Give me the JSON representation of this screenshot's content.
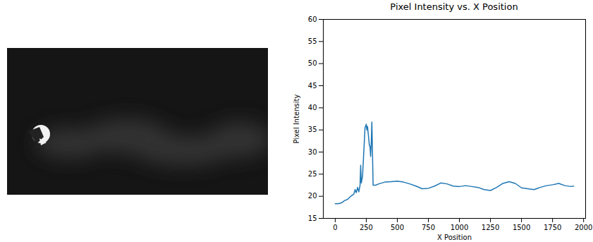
{
  "chart_data": {
    "type": "line",
    "title": "Pixel Intensity vs. X Position",
    "x_label": "X Position",
    "y_label": "Pixel Intensity",
    "x": [
      0,
      25,
      50,
      75,
      100,
      125,
      150,
      160,
      170,
      180,
      190,
      200,
      205,
      210,
      220,
      230,
      240,
      250,
      255,
      260,
      270,
      275,
      280,
      285,
      290,
      295,
      300,
      305,
      325,
      350,
      400,
      450,
      500,
      550,
      600,
      650,
      700,
      750,
      800,
      850,
      900,
      950,
      1000,
      1050,
      1100,
      1150,
      1200,
      1250,
      1300,
      1350,
      1400,
      1450,
      1500,
      1550,
      1600,
      1650,
      1700,
      1750,
      1800,
      1850,
      1900,
      1920
    ],
    "values": [
      18.3,
      18.3,
      18.5,
      19,
      19.3,
      20,
      20.5,
      21.5,
      20.8,
      22,
      21,
      22.5,
      27,
      23,
      24.5,
      30,
      35.5,
      36.3,
      35,
      35.8,
      33,
      31.5,
      31.3,
      29,
      32,
      36.8,
      30,
      22.5,
      22.5,
      22.8,
      23.2,
      23.3,
      23.4,
      23.2,
      22.8,
      22.3,
      21.7,
      21.8,
      22.3,
      23,
      22.8,
      22.3,
      22.2,
      22.4,
      22.2,
      22,
      21.5,
      21.3,
      22,
      22.9,
      23.3,
      22.9,
      21.9,
      21.7,
      21.5,
      22,
      22.4,
      22.6,
      22.9,
      22.4,
      22.2,
      22.3
    ],
    "color": "#1f77b4",
    "xlim": [
      -96,
      2016
    ],
    "xticks": [
      0,
      250,
      500,
      750,
      1000,
      1250,
      1500,
      1750,
      2000
    ],
    "ylim": [
      15,
      60
    ],
    "yticks": [
      15,
      20,
      25,
      30,
      35,
      40,
      45,
      50,
      55,
      60
    ],
    "grid": false
  }
}
